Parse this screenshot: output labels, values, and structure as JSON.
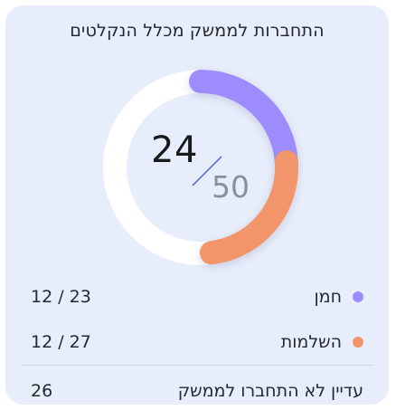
{
  "title": "התחברות לממשק מכלל הנקלטים",
  "donut": {
    "connected": "24",
    "total": "50",
    "segments": [
      {
        "name": "חמן",
        "value": 12,
        "color": "#9d8cfd"
      },
      {
        "name": "השלמות",
        "value": 12,
        "color": "#f2956b"
      }
    ],
    "track_color": "#ffffff",
    "slash_color": "#5b74d6"
  },
  "rows": [
    {
      "label": "חמן",
      "value": "12 / 23",
      "dot_color": "#9d8cfd"
    },
    {
      "label": "השלמות",
      "value": "12 / 27",
      "dot_color": "#f2956b"
    }
  ],
  "not_connected": {
    "label": "עדיין לא התחברו לממשק",
    "value": "26"
  }
}
